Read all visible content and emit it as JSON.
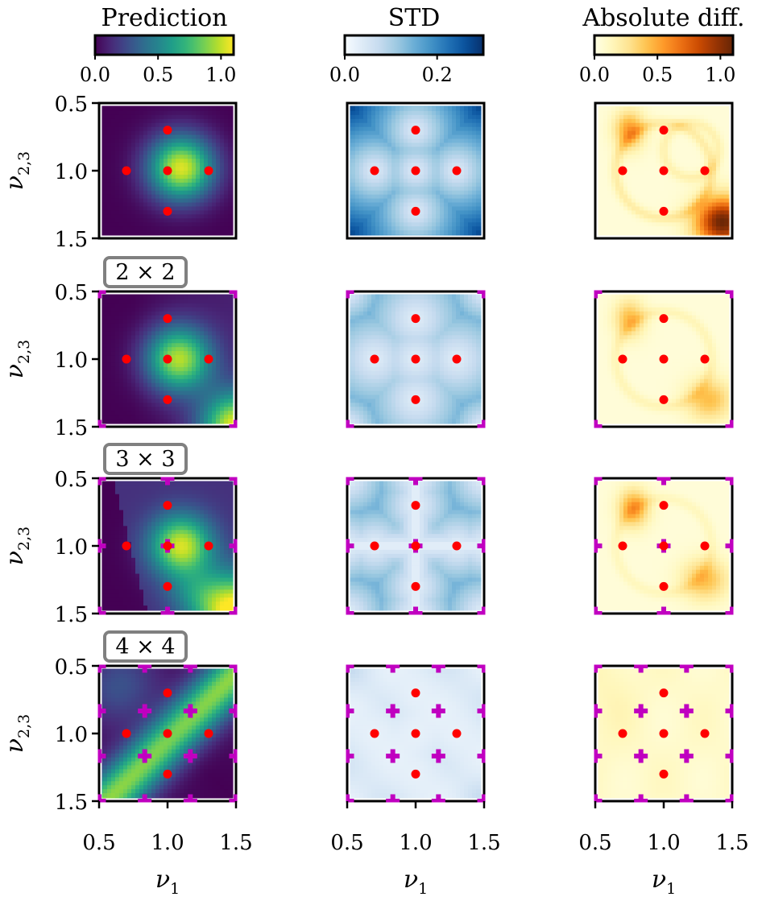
{
  "figure_title_columns": [
    "Prediction",
    "STD",
    "Absolute diff."
  ],
  "row_labels": [
    "",
    "2 × 2",
    "3 × 3",
    "4 × 4"
  ],
  "chart_data": {
    "type": "heatmap",
    "grid": "4 rows x 3 columns of heatmaps",
    "columns": [
      {
        "title": "Prediction",
        "colormap": "viridis",
        "colorbar_ticks": [
          "0.0",
          "0.5",
          "1.0"
        ],
        "vmin": 0.0,
        "vmax": 1.1
      },
      {
        "title": "STD",
        "colormap": "Blues",
        "colorbar_ticks": [
          "0.0",
          "0.2"
        ],
        "vmin": 0.0,
        "vmax": 0.3
      },
      {
        "title": "Absolute diff.",
        "colormap": "YlOrBr",
        "colorbar_ticks": [
          "0.0",
          "0.5",
          "1.0"
        ],
        "vmin": 0.0,
        "vmax": 1.1
      }
    ],
    "rows": [
      {
        "label": "",
        "grid_n": 0
      },
      {
        "label": "2 × 2",
        "grid_n": 2
      },
      {
        "label": "3 × 3",
        "grid_n": 3
      },
      {
        "label": "4 × 4",
        "grid_n": 4
      }
    ],
    "xlabel": "ν",
    "xlabel_sub": "1",
    "ylabel": "ν",
    "ylabel_sub": "2,3",
    "xlim": [
      0.5,
      1.5
    ],
    "ylim": [
      0.5,
      1.5
    ],
    "x_ticks": [
      "0.5",
      "1.0",
      "1.5"
    ],
    "y_ticks": [
      "0.5",
      "1.0",
      "1.5"
    ],
    "red_points": [
      [
        1.0,
        0.7
      ],
      [
        0.7,
        1.0
      ],
      [
        1.0,
        1.0
      ],
      [
        1.3,
        1.0
      ],
      [
        1.0,
        1.3
      ]
    ],
    "colors": {
      "red_point": "#ff0000",
      "cross_marker": "#c000c0",
      "badge_border": "#808080"
    }
  }
}
